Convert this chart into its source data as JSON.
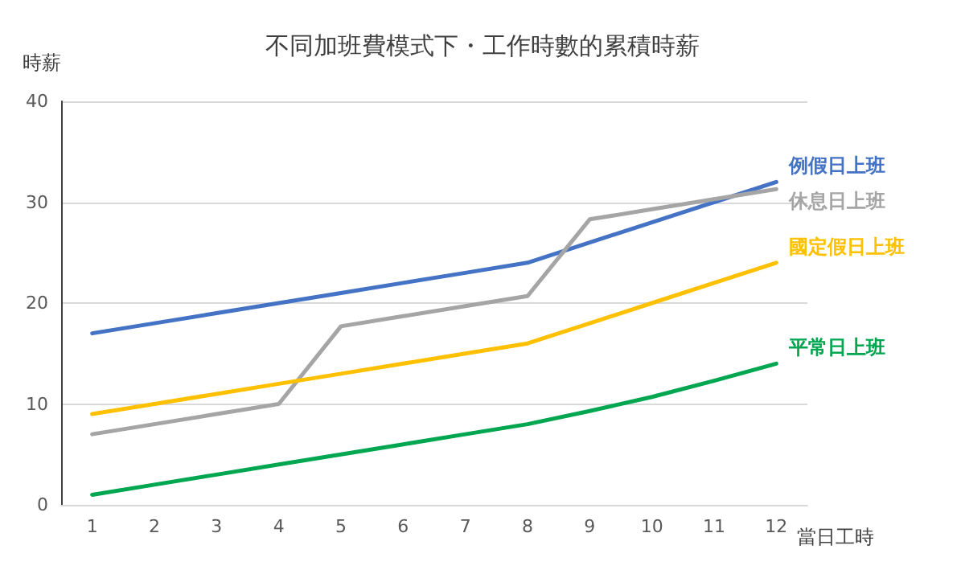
{
  "chart_data": {
    "type": "line",
    "title": "不同加班費模式下・工作時數的累積時薪",
    "xlabel": "當日工時",
    "ylabel": "時薪",
    "x": [
      1,
      2,
      3,
      4,
      5,
      6,
      7,
      8,
      9,
      10,
      11,
      12
    ],
    "xlim": [
      0.5,
      12.5
    ],
    "xticks": [
      1,
      2,
      3,
      4,
      5,
      6,
      7,
      8,
      9,
      10,
      11,
      12
    ],
    "series": [
      {
        "name": "例假日上班",
        "color": "#4472c4",
        "values": [
          17,
          18,
          19,
          20,
          21,
          22,
          23,
          24,
          26,
          28,
          30,
          32
        ]
      },
      {
        "name": "休息日上班",
        "color": "#a5a5a5",
        "values": [
          7,
          8,
          9,
          10,
          17.7,
          18.7,
          19.7,
          20.7,
          28.3,
          29.3,
          30.3,
          31.3
        ]
      },
      {
        "name": "國定假日上班",
        "color": "#ffc000",
        "values": [
          9,
          10,
          11,
          12,
          13,
          14,
          15,
          16,
          18,
          20,
          22,
          24
        ]
      },
      {
        "name": "平常日上班",
        "color": "#00a650",
        "values": [
          1,
          2,
          3,
          4,
          5,
          6,
          7,
          8,
          9.3,
          10.7,
          12.3,
          14
        ]
      }
    ],
    "ylim": [
      0,
      40
    ],
    "yticks": [
      0,
      10,
      20,
      30,
      40
    ],
    "grid": "y",
    "legend": false,
    "marker": "none",
    "line_style": "solid"
  }
}
